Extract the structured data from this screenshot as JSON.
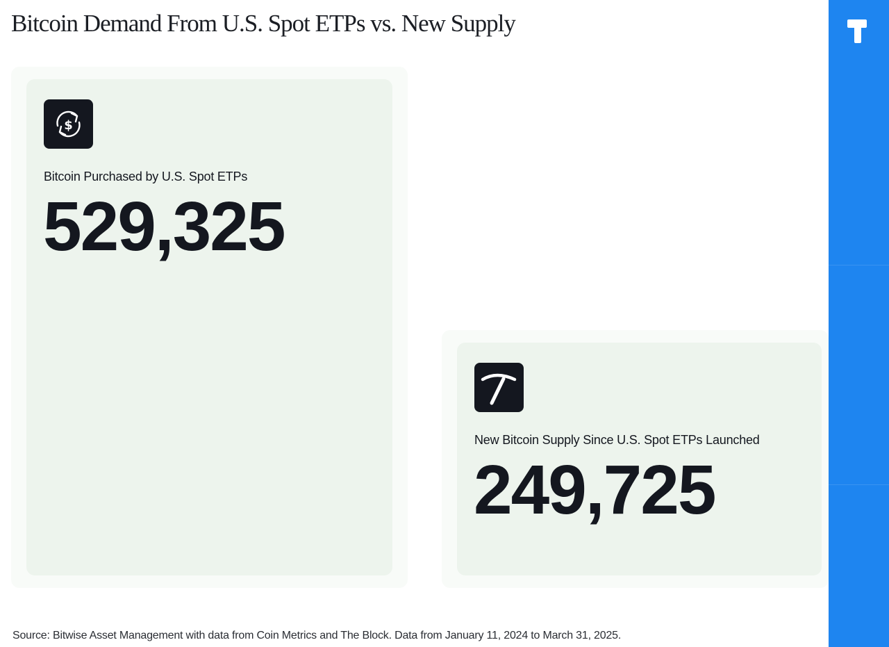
{
  "title": "Bitcoin Demand From U.S. Spot ETPs vs. New Supply",
  "chart_data": {
    "type": "bar",
    "categories": [
      "Bitcoin Purchased by U.S. Spot ETPs",
      "New Bitcoin Supply Since U.S. Spot ETPs Launched"
    ],
    "values": [
      529325,
      249725
    ],
    "display_values": [
      "529,325",
      "249,725"
    ],
    "icons": [
      "exchange-dollar-icon",
      "pickaxe-icon"
    ],
    "title": "Bitcoin Demand From U.S. Spot ETPs vs. New Supply",
    "xlabel": "",
    "ylabel": ""
  },
  "source": "Source: Bitwise Asset Management with data from Coin Metrics and The Block. Data from January 11, 2024 to March 31, 2025.",
  "brand": {
    "sidebar_color": "#1e85f0",
    "card_color": "#edf4ed",
    "icon_bg_color": "#14171f",
    "logo_icon": "brand-logo-icon"
  }
}
